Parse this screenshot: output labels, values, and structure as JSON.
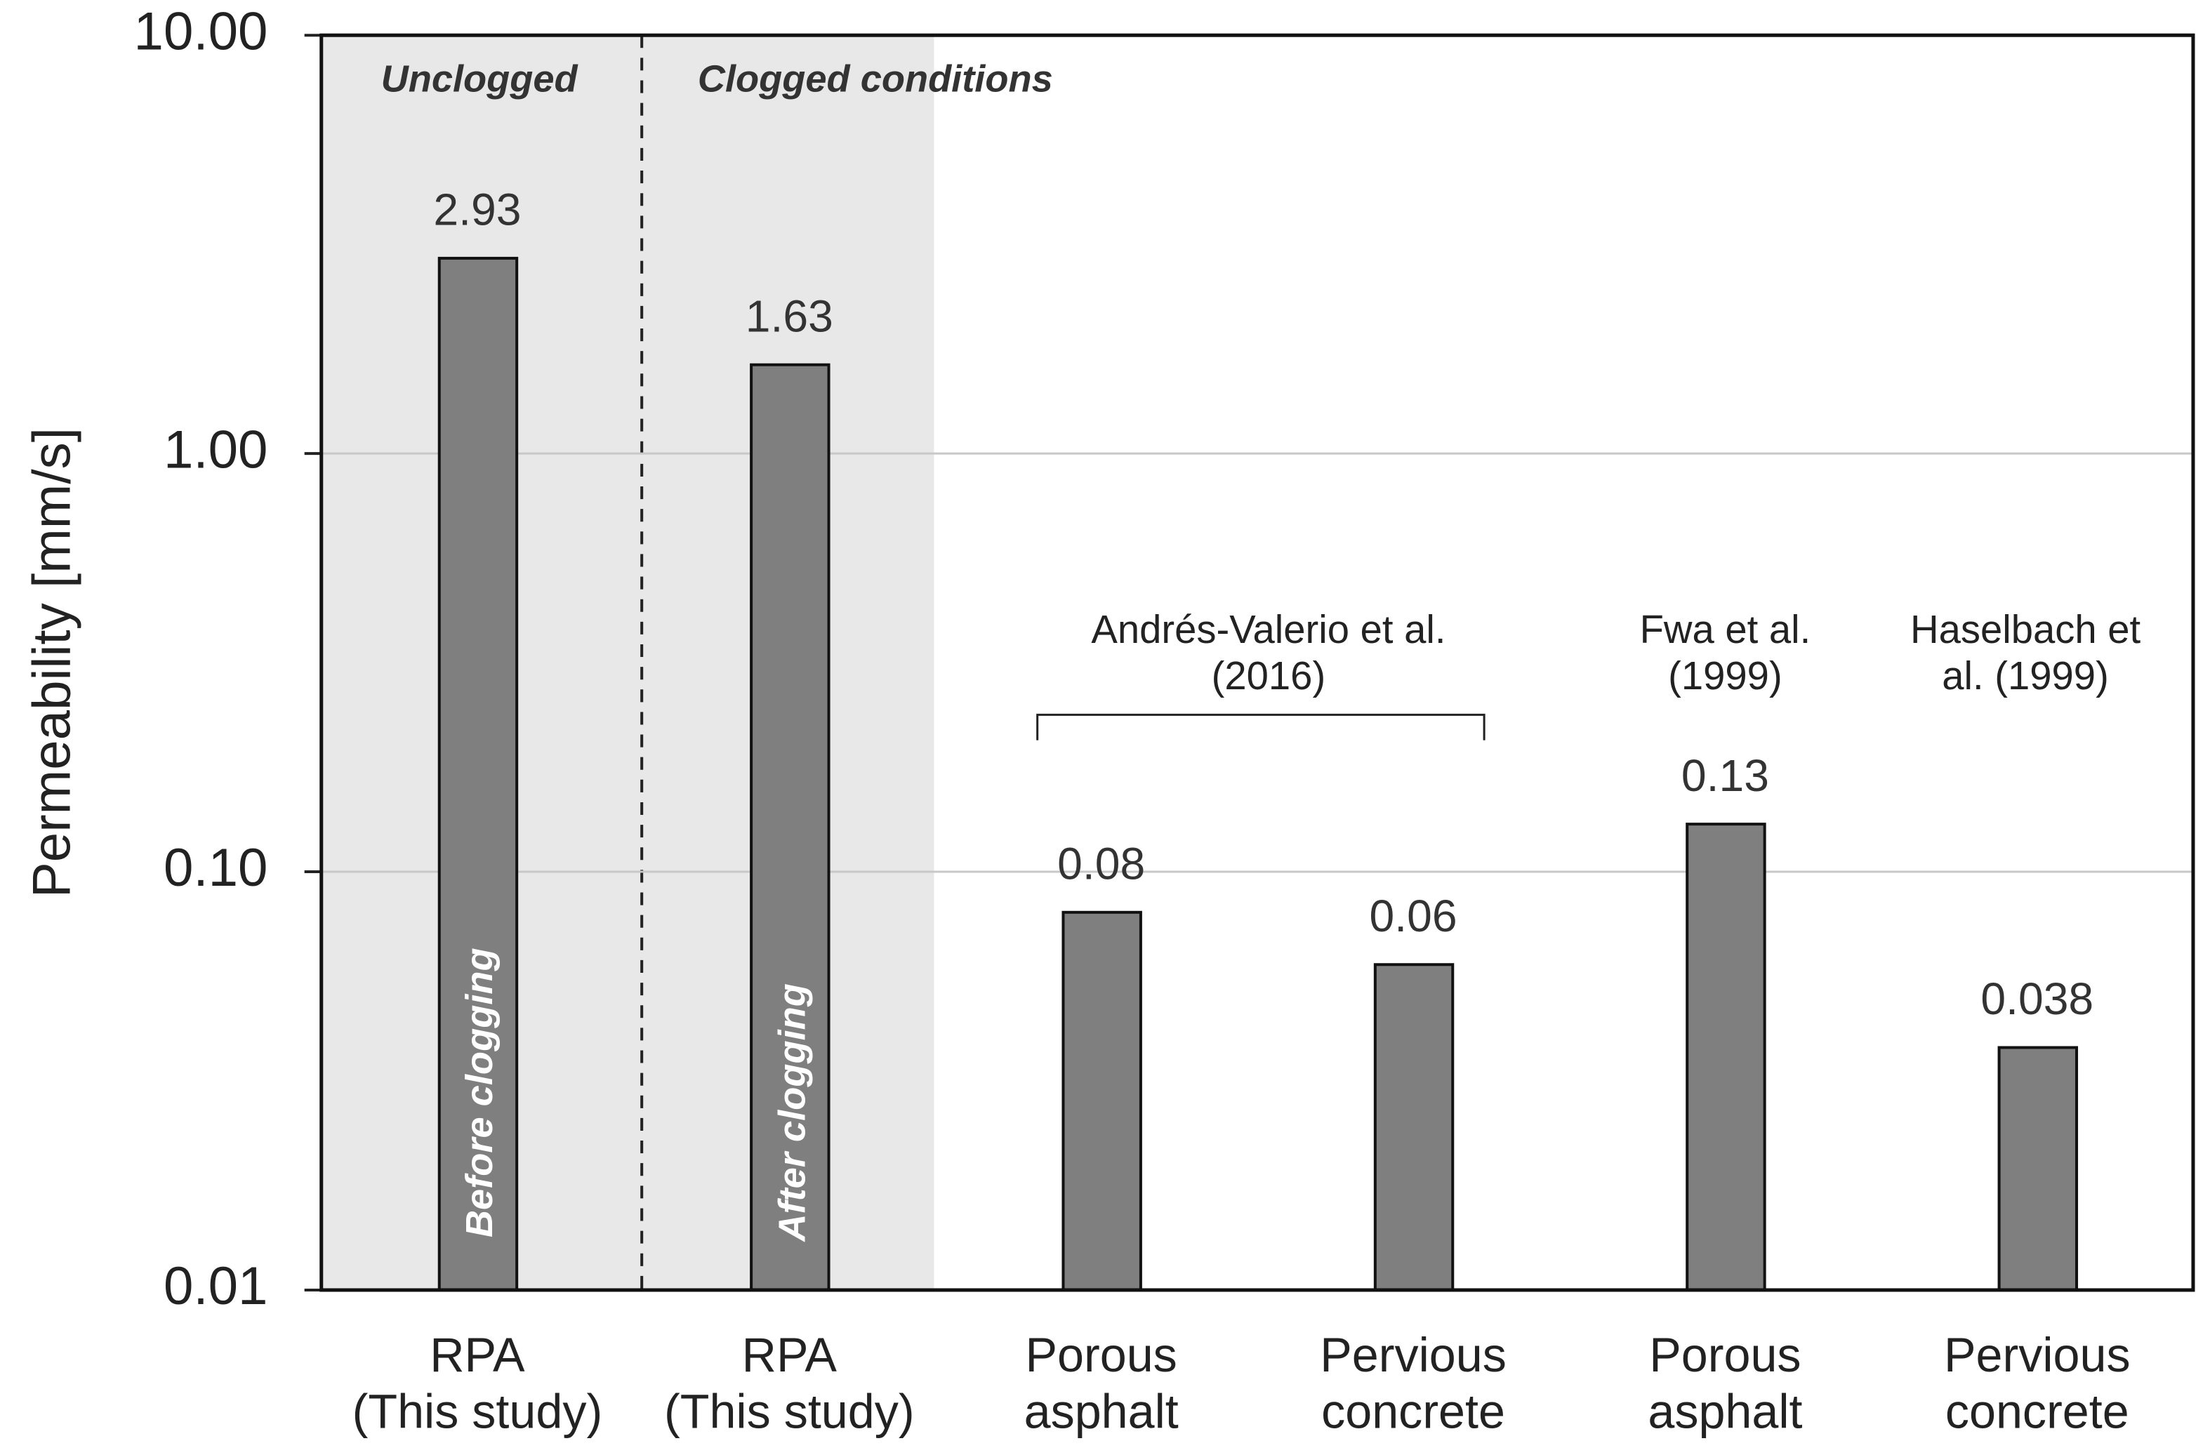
{
  "chart_data": {
    "type": "bar",
    "y_label": "Permeability [mm/s]",
    "categories": [
      "RPA\n(This study)",
      "RPA\n(This study)",
      "Porous\nasphalt",
      "Pervious\nconcrete",
      "Porous\nasphalt",
      "Pervious\nconcrete"
    ],
    "values": [
      2.93,
      1.63,
      0.08,
      0.06,
      0.13,
      0.038
    ],
    "color": "#7f7f7f",
    "ylim": [
      0.01,
      10
    ],
    "yticks": [
      0.01,
      {
        "value": 0.1,
        "label": "0.10"
      },
      {
        "value": 1,
        "label": "1.00"
      },
      {
        "value": 10,
        "label": "10.00"
      }
    ],
    "log_scale": true,
    "grid": true,
    "annotations": [
      "Unclogged",
      "Clogged conditions",
      "Before clogging",
      "After clogging",
      "Andrés-Valerio et al.\n(2016)",
      "Fwa et al.\n(1999)",
      "Haselbach et\nal. (1999)"
    ]
  }
}
